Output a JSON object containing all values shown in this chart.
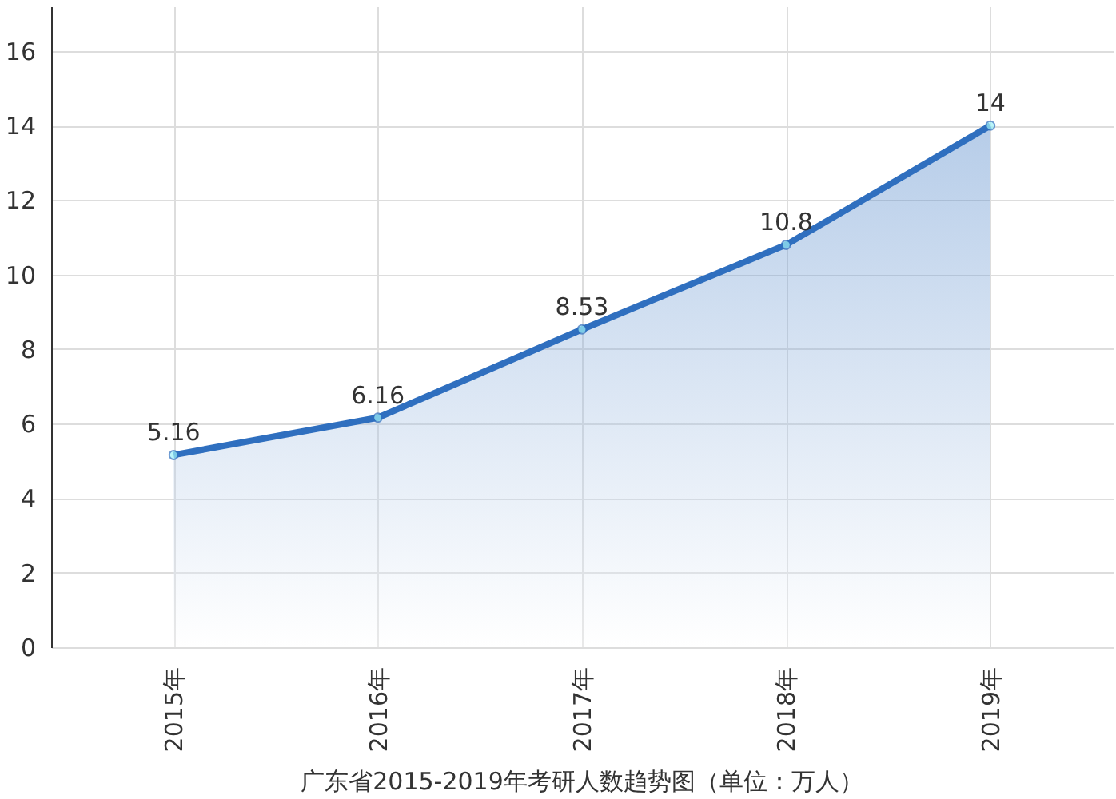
{
  "chart_data": {
    "type": "area",
    "title": "广东省2015-2019年考研人数趋势图（单位：万人）",
    "categories": [
      "2015年",
      "2016年",
      "2017年",
      "2018年",
      "2019年"
    ],
    "series": [
      {
        "color": "#2f6fbf",
        "values": [
          5.16,
          6.16,
          8.53,
          10.8,
          14
        ]
      }
    ],
    "ylim": [
      0,
      17.2
    ],
    "yticks": [
      0,
      2,
      4,
      6,
      8,
      10,
      12,
      14,
      16
    ],
    "grid": true,
    "marker": "circle",
    "data_labels": true
  }
}
